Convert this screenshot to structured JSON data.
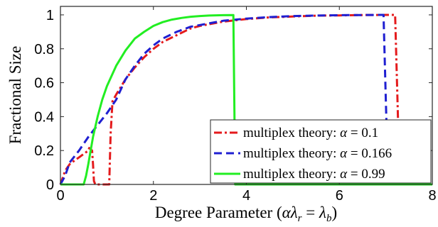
{
  "chart_data": {
    "type": "line",
    "title": "",
    "xlabel": "Degree Parameter (αλ_r = λ_b)",
    "ylabel": "Fractional Size",
    "xlim": [
      0,
      8
    ],
    "ylim": [
      0,
      1.05
    ],
    "xticks": [
      0,
      2,
      4,
      6,
      8
    ],
    "yticks": [
      0,
      0.2,
      0.4,
      0.6,
      0.8,
      1
    ],
    "xtick_labels": [
      "0",
      "2",
      "4",
      "6",
      "8"
    ],
    "ytick_labels": [
      "0",
      "0.2",
      "0.4",
      "0.6",
      "0.8",
      "1"
    ],
    "grid": false,
    "legend_position": "bottom-right",
    "series": [
      {
        "name": "multiplex theory: α = 0.1",
        "legend_prefix": "multiplex theory:",
        "legend_math": "α = 0.1",
        "color": "#e41a1c",
        "dash": "dashdot",
        "x": [
          0,
          0.05,
          0.1,
          0.2,
          0.3,
          0.4,
          0.5,
          0.55,
          0.6,
          0.62,
          0.68,
          0.7,
          0.72,
          0.75,
          0.8,
          1.0,
          1.05,
          1.08,
          1.12,
          1.2,
          1.4,
          1.6,
          1.8,
          2.0,
          2.2,
          2.5,
          2.8,
          3.0,
          3.5,
          4.0,
          4.5,
          5.0,
          5.5,
          6.0,
          6.5,
          7.0,
          7.15,
          7.2,
          7.25,
          7.3,
          7.5,
          8.0
        ],
        "y": [
          0,
          0.04,
          0.08,
          0.12,
          0.14,
          0.16,
          0.18,
          0.19,
          0.2,
          0.215,
          0.2,
          0.12,
          0.02,
          0,
          0,
          0,
          0,
          0.3,
          0.49,
          0.53,
          0.62,
          0.69,
          0.75,
          0.8,
          0.84,
          0.88,
          0.92,
          0.935,
          0.96,
          0.975,
          0.985,
          0.99,
          0.995,
          0.997,
          0.999,
          1.0,
          1.0,
          1.0,
          0.5,
          0,
          0,
          0
        ]
      },
      {
        "name": "multiplex theory: α = 0.166",
        "legend_prefix": "multiplex theory:",
        "legend_math": "α = 0.166",
        "color": "#1f1fd1",
        "dash": "dashed",
        "x": [
          0,
          0.1,
          0.2,
          0.4,
          0.6,
          0.8,
          1.0,
          1.2,
          1.4,
          1.6,
          1.8,
          2.0,
          2.2,
          2.5,
          2.8,
          3.0,
          3.5,
          4.0,
          4.5,
          5.0,
          5.5,
          6.0,
          6.5,
          6.9,
          6.95,
          7.0,
          7.05,
          7.5,
          8.0
        ],
        "y": [
          0,
          0.05,
          0.13,
          0.2,
          0.28,
          0.35,
          0.42,
          0.5,
          0.62,
          0.7,
          0.77,
          0.82,
          0.86,
          0.9,
          0.93,
          0.94,
          0.965,
          0.978,
          0.987,
          0.993,
          0.996,
          0.998,
          0.999,
          1.0,
          1.0,
          0.5,
          0,
          0,
          0
        ]
      },
      {
        "name": "multiplex theory: α = 0.99",
        "legend_prefix": "multiplex theory:",
        "legend_math": "α = 0.99",
        "color": "#22ee22",
        "dash": "solid",
        "x": [
          0,
          0.5,
          0.55,
          0.6,
          0.7,
          0.8,
          0.9,
          1.0,
          1.2,
          1.4,
          1.6,
          1.8,
          2.0,
          2.2,
          2.4,
          2.6,
          2.8,
          3.0,
          3.2,
          3.5,
          3.7,
          3.72,
          3.74,
          3.76,
          4.0,
          6.0,
          8.0
        ],
        "y": [
          0,
          0,
          0.05,
          0.12,
          0.28,
          0.4,
          0.5,
          0.58,
          0.7,
          0.79,
          0.86,
          0.9,
          0.935,
          0.957,
          0.972,
          0.982,
          0.989,
          0.993,
          0.996,
          0.998,
          0.999,
          0.999,
          0.5,
          0,
          0,
          0,
          0
        ]
      }
    ]
  }
}
